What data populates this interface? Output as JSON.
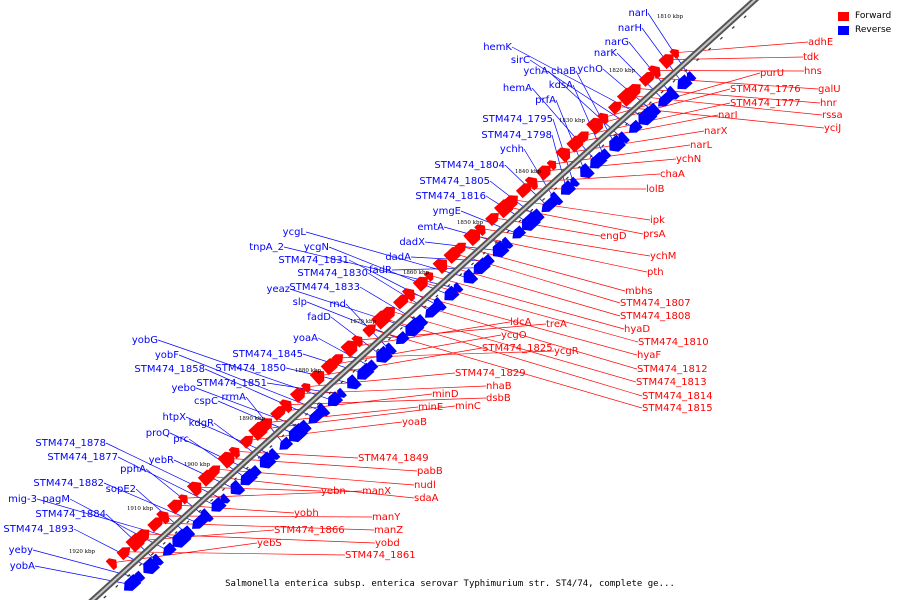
{
  "legend": {
    "forward_label": "Forward",
    "reverse_label": "Reverse",
    "forward_color": "#ff0000",
    "reverse_color": "#0000ff"
  },
  "caption": "Salmonella enterica subsp. enterica serovar Typhimurium str. ST4/74, complete ge...",
  "ticks": [
    "1810 kbp",
    "1820 kbp",
    "1830 kbp",
    "1840 kbp",
    "1850 kbp",
    "1860 kbp",
    "1870 kbp",
    "1880 kbp",
    "1890 kbp",
    "1900 kbp",
    "1910 kbp",
    "1920 kbp"
  ],
  "reverse_genes": [
    "narI",
    "narH",
    "narG",
    "narK",
    "ychO",
    "hemK",
    "sirC",
    "ychA",
    "chaB",
    "kdsA",
    "hemA",
    "prfA",
    "STM474_1795",
    "STM474_1798",
    "ychh",
    "STM474_1804",
    "STM474_1805",
    "STM474_1816",
    "ymgE",
    "emtA",
    "dadX",
    "dadA",
    "fadR",
    "ycgL",
    "tnpA_2",
    "ycgN",
    "STM474_1831",
    "STM474_1830",
    "STM474_1833",
    "yeaz",
    "slp",
    "rnd",
    "fadD",
    "yoaA",
    "STM474_1845",
    "STM474_1850",
    "STM474_1851",
    "yobG",
    "yobF",
    "STM474_1858",
    "yebo",
    "cspC",
    "rrmA",
    "htpX",
    "kdgR",
    "proQ",
    "prc",
    "yebR",
    "STM474_1878",
    "STM474_1877",
    "pphA",
    "STM474_1882",
    "sopE2",
    "mig-3",
    "pagM",
    "STM474_1884",
    "STM474_1893",
    "yeby",
    "yobA"
  ],
  "forward_genes": [
    "adhE",
    "tdk",
    "hns",
    "galU",
    "hnr",
    "rssa",
    "yciJ",
    "purU",
    "STM474_1776",
    "STM474_1777",
    "narI",
    "narX",
    "narL",
    "ychN",
    "chaA",
    "lolB",
    "ipk",
    "prsA",
    "engD",
    "ychM",
    "pth",
    "mbhs",
    "STM474_1807",
    "STM474_1808",
    "hyaD",
    "STM474_1810",
    "hyaF",
    "STM474_1812",
    "STM474_1813",
    "STM474_1814",
    "STM474_1815",
    "treA",
    "ldcA",
    "ycgR",
    "ycgO",
    "STM474_1825",
    "STM474_1829",
    "nhaB",
    "dsbB",
    "minD",
    "minE",
    "minC",
    "yoaB",
    "STM474_1849",
    "pabB",
    "nudl",
    "sdaA",
    "yebn",
    "manX",
    "yobh",
    "manY",
    "manZ",
    "yobd",
    "STM474_1866",
    "STM474_1861",
    "yebS"
  ]
}
